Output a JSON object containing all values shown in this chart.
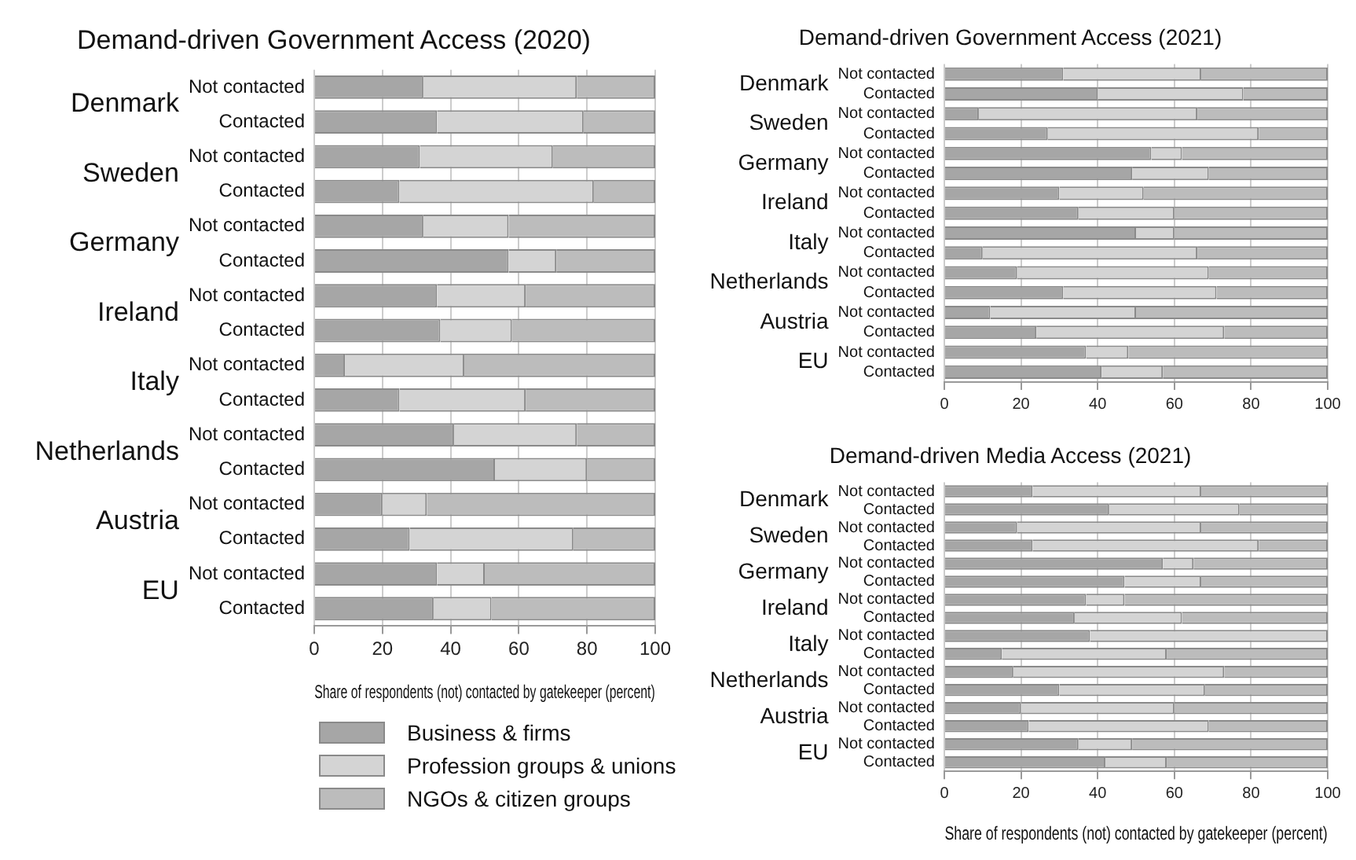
{
  "chart_data": [
    {
      "type": "bar",
      "orientation": "horizontal",
      "stacked": true,
      "title": "Demand-driven Government Access (2020)",
      "xlabel": "Share of respondents (not) contacted by gatekeeper (percent)",
      "categories": [
        "Not contacted",
        "Contacted",
        "Not contacted",
        "Contacted",
        "Not contacted",
        "Contacted",
        "Not contacted",
        "Contacted",
        "Not contacted",
        "Contacted",
        "Not contacted",
        "Contacted",
        "Not contacted",
        "Contacted",
        "Not contacted",
        "Contacted"
      ],
      "series": [
        {
          "name": "Business & firms",
          "color": "#a6a6a6",
          "values": [
            32,
            36,
            31,
            25,
            32,
            57,
            36,
            37,
            9,
            25,
            41,
            53,
            20,
            28,
            36,
            35
          ]
        },
        {
          "name": "Profession groups & unions",
          "color": "#d4d4d4",
          "values": [
            45,
            43,
            39,
            57,
            25,
            14,
            26,
            21,
            35,
            37,
            36,
            27,
            13,
            48,
            14,
            17
          ]
        },
        {
          "name": "NGOs & citizen groups",
          "color": "#bcbcbc",
          "values": [
            23,
            21,
            30,
            18,
            43,
            29,
            38,
            42,
            56,
            38,
            23,
            20,
            67,
            24,
            50,
            48
          ]
        }
      ],
      "xlim": [
        0,
        100
      ],
      "xticks": [
        0,
        20,
        40,
        60,
        80,
        100
      ],
      "grid": "x",
      "legend": "bottom",
      "annotations": [
        "Denmark",
        "Sweden",
        "Germany",
        "Ireland",
        "Italy",
        "Netherlands",
        "Austria",
        "EU"
      ]
    },
    {
      "type": "bar",
      "orientation": "horizontal",
      "stacked": true,
      "title": "Demand-driven Government Access (2021)",
      "categories": [
        "Not contacted",
        "Contacted",
        "Not contacted",
        "Contacted",
        "Not contacted",
        "Contacted",
        "Not contacted",
        "Contacted",
        "Not contacted",
        "Contacted",
        "Not contacted",
        "Contacted",
        "Not contacted",
        "Contacted",
        "Not contacted",
        "Contacted"
      ],
      "series": [
        {
          "color": "#a6a6a6",
          "values": [
            31,
            40,
            9,
            27,
            54,
            49,
            30,
            35,
            50,
            10,
            19,
            31,
            12,
            24,
            37,
            41
          ]
        },
        {
          "color": "#d4d4d4",
          "values": [
            36,
            38,
            57,
            55,
            8,
            20,
            22,
            25,
            10,
            56,
            50,
            40,
            38,
            49,
            11,
            16
          ]
        },
        {
          "color": "#bcbcbc",
          "values": [
            33,
            22,
            34,
            18,
            38,
            31,
            48,
            40,
            40,
            34,
            31,
            29,
            50,
            27,
            52,
            43
          ]
        }
      ],
      "xlim": [
        0,
        100
      ],
      "xticks": [
        0,
        20,
        40,
        60,
        80,
        100
      ],
      "grid": "x",
      "annotations": [
        "Denmark",
        "Sweden",
        "Germany",
        "Ireland",
        "Italy",
        "Netherlands",
        "Austria",
        "EU"
      ]
    },
    {
      "type": "bar",
      "orientation": "horizontal",
      "stacked": true,
      "title": "Demand-driven Media Access (2021)",
      "xlabel": "Share of respondents (not) contacted by gatekeeper (percent)",
      "categories": [
        "Not contacted",
        "Contacted",
        "Not contacted",
        "Contacted",
        "Not contacted",
        "Contacted",
        "Not contacted",
        "Contacted",
        "Not contacted",
        "Contacted",
        "Not contacted",
        "Contacted",
        "Not contacted",
        "Contacted",
        "Not contacted",
        "Contacted"
      ],
      "series": [
        {
          "color": "#a6a6a6",
          "values": [
            23,
            43,
            19,
            23,
            57,
            47,
            37,
            34,
            38,
            15,
            18,
            30,
            20,
            22,
            35,
            42
          ]
        },
        {
          "color": "#d4d4d4",
          "values": [
            44,
            34,
            48,
            59,
            8,
            20,
            10,
            28,
            62,
            43,
            55,
            38,
            40,
            47,
            14,
            16
          ]
        },
        {
          "color": "#bcbcbc",
          "values": [
            33,
            23,
            33,
            18,
            35,
            33,
            53,
            38,
            0,
            42,
            27,
            32,
            40,
            31,
            51,
            42
          ]
        }
      ],
      "xlim": [
        0,
        100
      ],
      "xticks": [
        0,
        20,
        40,
        60,
        80,
        100
      ],
      "grid": "x",
      "annotations": [
        "Denmark",
        "Sweden",
        "Germany",
        "Ireland",
        "Italy",
        "Netherlands",
        "Austria",
        "EU"
      ]
    }
  ]
}
